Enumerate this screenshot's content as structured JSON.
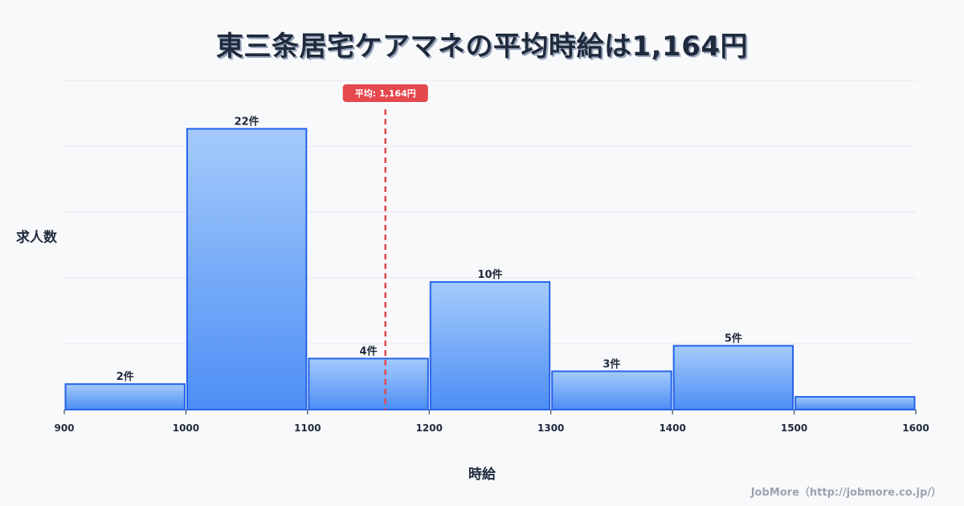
{
  "title": "東三条居宅ケアマネの平均時給は1,164円",
  "footer": "JobMore（http://jobmore.co.jp/）",
  "colors": {
    "bar_top": "#a5cbfb",
    "bar_bottom": "#4d8ef5",
    "bar_border": "#2563eb",
    "avg_line": "#e5484d",
    "grid": "#e3e6ee",
    "text": "#1f2a3c"
  },
  "chart_data": {
    "type": "bar",
    "title": "東三条居宅ケアマネの平均時給は1,164円",
    "xlabel": "時給",
    "ylabel": "求人数",
    "bins": [
      900,
      1000,
      1100,
      1200,
      1300,
      1400,
      1500,
      1600
    ],
    "categories": [
      "900-1000",
      "1000-1100",
      "1100-1200",
      "1200-1300",
      "1300-1400",
      "1400-1500",
      "1500-1600"
    ],
    "values": [
      2,
      22,
      4,
      10,
      3,
      5,
      1
    ],
    "labels": [
      "2件",
      "22件",
      "4件",
      "10件",
      "3件",
      "5件",
      ""
    ],
    "x_ticks": [
      "900",
      "1000",
      "1100",
      "1200",
      "1300",
      "1400",
      "1500",
      "1600"
    ],
    "xlim": [
      900,
      1600
    ],
    "ylim": [
      0,
      25.8
    ],
    "grid": true,
    "mean": 1164,
    "mean_label": "平均: 1,164円"
  }
}
